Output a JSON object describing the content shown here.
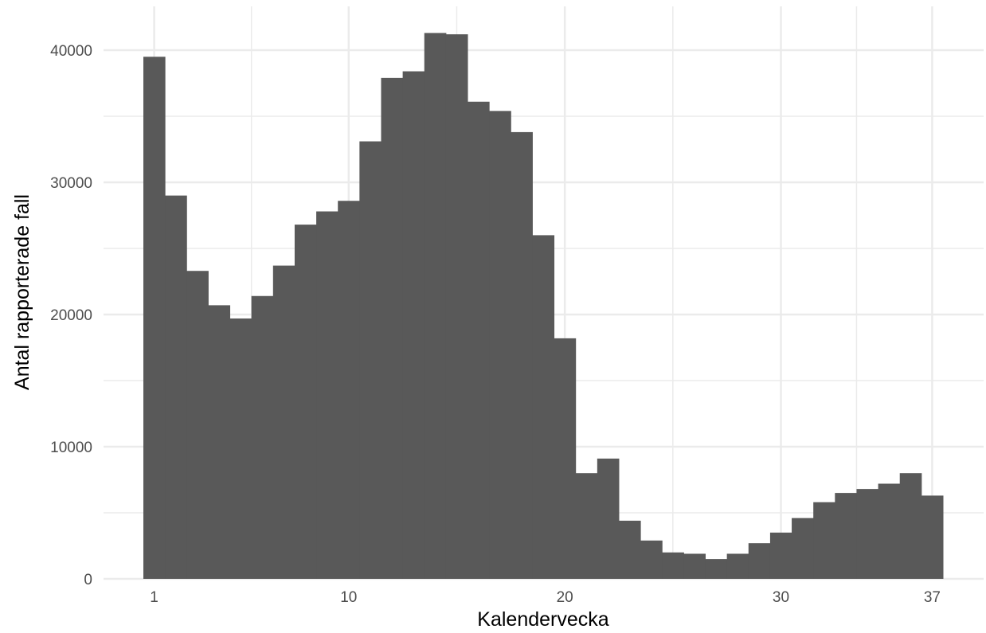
{
  "chart_data": {
    "type": "bar",
    "title": "",
    "xlabel": "Kalendervecka",
    "ylabel": "Antal rapporterade fall",
    "x": [
      1,
      2,
      3,
      4,
      5,
      6,
      7,
      8,
      9,
      10,
      11,
      12,
      13,
      14,
      15,
      16,
      17,
      18,
      19,
      20,
      21,
      22,
      23,
      24,
      25,
      26,
      27,
      28,
      29,
      30,
      31,
      32,
      33,
      34,
      35,
      36,
      37
    ],
    "values": [
      39500,
      29000,
      23300,
      20700,
      19700,
      21400,
      23700,
      26800,
      27800,
      28600,
      33100,
      37900,
      38400,
      41300,
      41200,
      36100,
      35400,
      33800,
      26000,
      18200,
      8000,
      9100,
      4400,
      2900,
      2000,
      1900,
      1500,
      1900,
      2700,
      3500,
      4600,
      5800,
      6500,
      6800,
      7200,
      8000,
      6300
    ],
    "xlim": [
      0.5,
      37.5
    ],
    "ylim": [
      0,
      41300
    ],
    "x_ticks": [
      "1",
      "10",
      "20",
      "30",
      "37"
    ],
    "y_ticks": [
      "0",
      "10000",
      "20000",
      "30000",
      "40000"
    ],
    "grid": true,
    "bar_color": "#595959",
    "grid_color": "#ebebeb"
  }
}
